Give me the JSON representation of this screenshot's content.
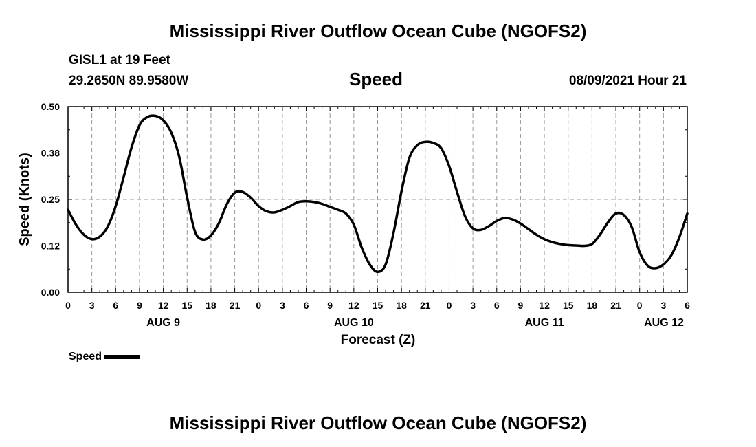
{
  "header": {
    "title": "Mississippi River Outflow Ocean Cube (NGOFS2)",
    "station": "GISL1 at 19 Feet",
    "coords": "29.2650N  89.9580W",
    "variable": "Speed",
    "datetime": "08/09/2021 Hour 21"
  },
  "footer": {
    "title": "Mississippi River Outflow Ocean Cube (NGOFS2)"
  },
  "legend": {
    "label": "Speed"
  },
  "colors": {
    "line": "#000000",
    "grid": "#999999"
  },
  "chart_data": {
    "type": "line",
    "title": "Speed",
    "xlabel": "Forecast (Z)",
    "ylabel": "Speed (Knots)",
    "xlim": [
      0,
      78
    ],
    "ylim": [
      0,
      0.5
    ],
    "yticks": [
      "0.00",
      "0.12",
      "0.25",
      "0.38",
      "0.50"
    ],
    "ytick_values": [
      0,
      0.125,
      0.25,
      0.375,
      0.5
    ],
    "xtick_labels": [
      "0",
      "3",
      "6",
      "9",
      "12",
      "15",
      "18",
      "21",
      "0",
      "3",
      "6",
      "9",
      "12",
      "15",
      "18",
      "21",
      "0",
      "3",
      "6",
      "9",
      "12",
      "15",
      "18",
      "21",
      "0",
      "3",
      "6"
    ],
    "date_labels": [
      {
        "label": "AUG 9",
        "hour": 12
      },
      {
        "label": "AUG 10",
        "hour": 36
      },
      {
        "label": "AUG 11",
        "hour": 60
      },
      {
        "label": "AUG 12",
        "hour": 78
      }
    ],
    "grid": true,
    "series": [
      {
        "name": "Speed",
        "x": [
          0,
          1,
          2,
          3,
          4,
          5,
          6,
          7,
          8,
          9,
          10,
          11,
          12,
          13,
          14,
          15,
          16,
          17,
          18,
          19,
          20,
          21,
          22,
          23,
          24,
          25,
          26,
          27,
          28,
          29,
          30,
          31,
          32,
          33,
          34,
          35,
          36,
          37,
          38,
          39,
          40,
          41,
          42,
          43,
          44,
          45,
          46,
          47,
          48,
          49,
          50,
          51,
          52,
          53,
          54,
          55,
          56,
          57,
          58,
          59,
          60,
          61,
          62,
          63,
          64,
          65,
          66,
          67,
          68,
          69,
          70,
          71,
          72,
          73,
          74,
          75,
          76,
          77,
          78
        ],
        "values": [
          0.222,
          0.182,
          0.155,
          0.143,
          0.15,
          0.177,
          0.232,
          0.31,
          0.39,
          0.45,
          0.472,
          0.475,
          0.463,
          0.43,
          0.365,
          0.255,
          0.163,
          0.142,
          0.153,
          0.186,
          0.237,
          0.268,
          0.27,
          0.255,
          0.232,
          0.218,
          0.215,
          0.222,
          0.232,
          0.243,
          0.245,
          0.243,
          0.238,
          0.23,
          0.222,
          0.212,
          0.182,
          0.12,
          0.075,
          0.055,
          0.075,
          0.16,
          0.272,
          0.362,
          0.396,
          0.405,
          0.402,
          0.388,
          0.34,
          0.27,
          0.205,
          0.172,
          0.168,
          0.178,
          0.192,
          0.2,
          0.196,
          0.185,
          0.17,
          0.155,
          0.143,
          0.135,
          0.13,
          0.127,
          0.126,
          0.125,
          0.13,
          0.155,
          0.188,
          0.212,
          0.208,
          0.176,
          0.108,
          0.072,
          0.065,
          0.075,
          0.1,
          0.148,
          0.212
        ]
      }
    ]
  }
}
